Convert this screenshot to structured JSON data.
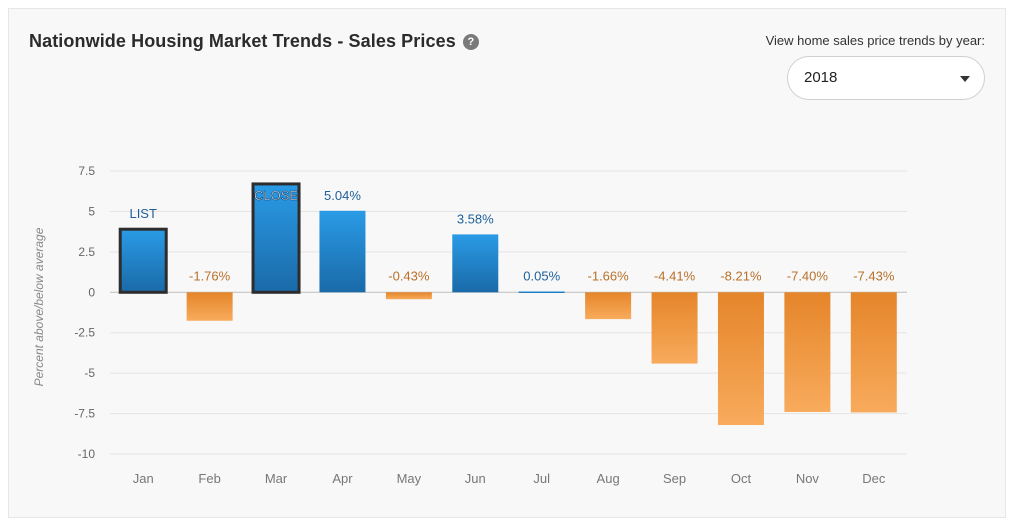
{
  "header": {
    "title": "Nationwide Housing Market Trends - Sales Prices",
    "help_icon": "question-circle-icon"
  },
  "year_picker": {
    "label": "View home sales price trends by year:",
    "selected": "2018",
    "icon": "chevron-down-icon"
  },
  "colors": {
    "positive_top": "#2a9be6",
    "positive_bottom": "#1a6aa8",
    "negative_top": "#e5852a",
    "negative_bottom": "#f8ab5c",
    "positive_label": "#1e5f9a",
    "negative_label": "#b8702a",
    "highlight_border": "#2d2d2d"
  },
  "chart_data": {
    "type": "bar",
    "ylabel": "Percent above/below average",
    "ylim": [
      -10,
      7.5
    ],
    "yticks": [
      7.5,
      5,
      2.5,
      0,
      -2.5,
      -5,
      -7.5,
      -10
    ],
    "ytick_labels": [
      "7.5",
      "5",
      "2.5",
      "0",
      "-2.5",
      "-5",
      "-7.5",
      "-10"
    ],
    "categories": [
      "Jan",
      "Feb",
      "Mar",
      "Apr",
      "May",
      "Jun",
      "Jul",
      "Aug",
      "Sep",
      "Oct",
      "Nov",
      "Dec"
    ],
    "values": [
      3.9,
      -1.76,
      6.7,
      5.04,
      -0.43,
      3.58,
      0.05,
      -1.66,
      -4.41,
      -8.21,
      -7.4,
      -7.43
    ],
    "data_labels": [
      "LIST",
      "-1.76%",
      "CLOSE",
      "5.04%",
      "-0.43%",
      "3.58%",
      "0.05%",
      "-1.66%",
      "-4.41%",
      "-8.21%",
      "-7.40%",
      "-7.43%"
    ],
    "highlighted": [
      "Jan",
      "Mar"
    ],
    "grid": true
  }
}
